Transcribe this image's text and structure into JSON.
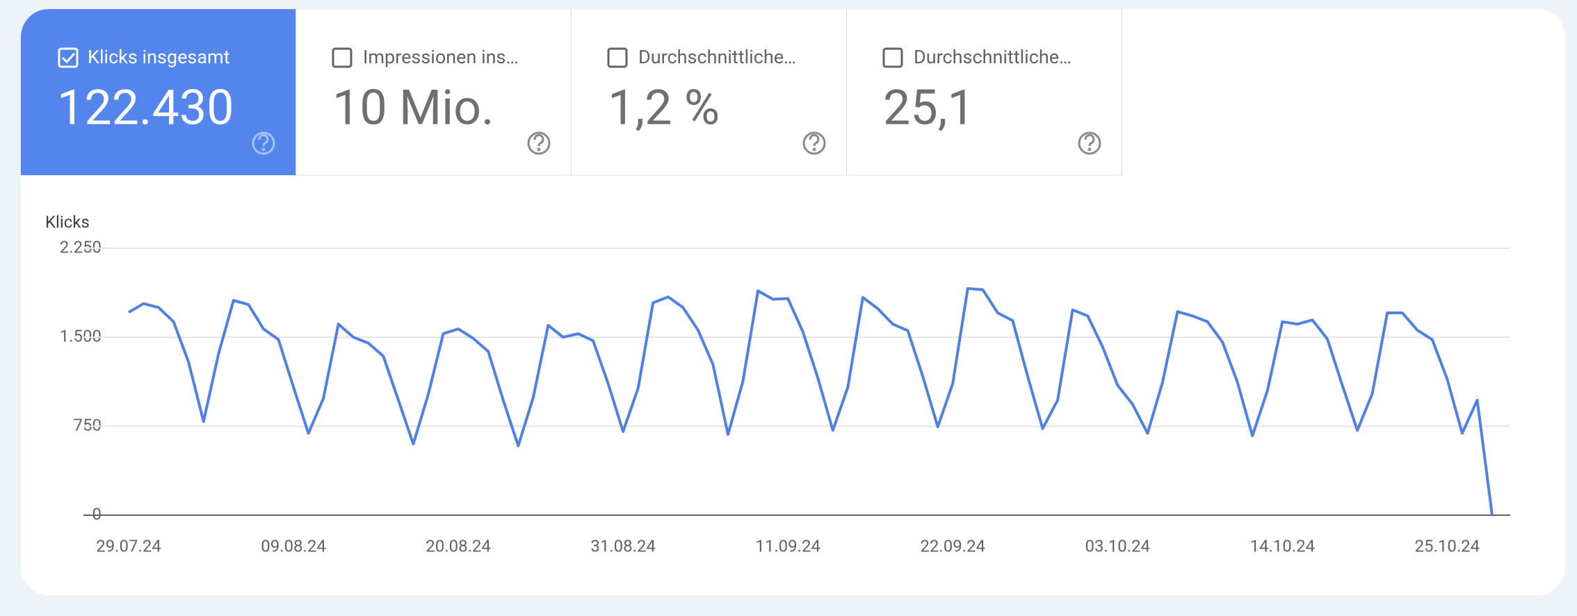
{
  "metrics": [
    {
      "label": "Klicks insgesamt",
      "value": "122.430"
    },
    {
      "label": "Impressionen ins…",
      "value": "10 Mio."
    },
    {
      "label": "Durchschnittliche…",
      "value": "1,2 %"
    },
    {
      "label": "Durchschnittliche…",
      "value": "25,1"
    }
  ],
  "chart_data": {
    "type": "line",
    "y_label": "Klicks",
    "color": "#4f81e3",
    "x": [
      "29.07.24",
      "30.07.24",
      "31.07.24",
      "01.08.24",
      "02.08.24",
      "03.08.24",
      "04.08.24",
      "05.08.24",
      "06.08.24",
      "07.08.24",
      "08.08.24",
      "09.08.24",
      "10.08.24",
      "11.08.24",
      "12.08.24",
      "13.08.24",
      "14.08.24",
      "15.08.24",
      "16.08.24",
      "17.08.24",
      "18.08.24",
      "19.08.24",
      "20.08.24",
      "21.08.24",
      "22.08.24",
      "23.08.24",
      "24.08.24",
      "25.08.24",
      "26.08.24",
      "27.08.24",
      "28.08.24",
      "29.08.24",
      "30.08.24",
      "31.08.24",
      "01.09.24",
      "02.09.24",
      "03.09.24",
      "04.09.24",
      "05.09.24",
      "06.09.24",
      "07.09.24",
      "08.09.24",
      "09.09.24",
      "10.09.24",
      "11.09.24",
      "12.09.24",
      "13.09.24",
      "14.09.24",
      "15.09.24",
      "16.09.24",
      "17.09.24",
      "18.09.24",
      "19.09.24",
      "20.09.24",
      "21.09.24",
      "22.09.24",
      "23.09.24",
      "24.09.24",
      "25.09.24",
      "26.09.24",
      "27.09.24",
      "28.09.24",
      "29.09.24",
      "30.09.24",
      "01.10.24",
      "02.10.24",
      "03.10.24",
      "04.10.24",
      "05.10.24",
      "06.10.24",
      "07.10.24",
      "08.10.24",
      "09.10.24",
      "10.10.24",
      "11.10.24",
      "12.10.24",
      "13.10.24",
      "14.10.24",
      "15.10.24",
      "16.10.24",
      "17.10.24",
      "18.10.24",
      "19.10.24",
      "20.10.24",
      "21.10.24",
      "22.10.24",
      "23.10.24",
      "24.10.24",
      "25.10.24",
      "26.10.24",
      "27.10.24",
      "28.10.24"
    ],
    "values": [
      1710,
      1783,
      1750,
      1630,
      1290,
      790,
      1360,
      1810,
      1775,
      1570,
      1480,
      1080,
      690,
      985,
      1610,
      1500,
      1450,
      1340,
      970,
      600,
      1020,
      1530,
      1570,
      1490,
      1380,
      970,
      585,
      990,
      1600,
      1500,
      1530,
      1470,
      1110,
      705,
      1070,
      1790,
      1840,
      1750,
      1560,
      1270,
      680,
      1130,
      1890,
      1820,
      1825,
      1545,
      1155,
      715,
      1080,
      1835,
      1740,
      1610,
      1555,
      1170,
      745,
      1110,
      1910,
      1900,
      1705,
      1640,
      1170,
      730,
      970,
      1730,
      1680,
      1420,
      1095,
      935,
      690,
      1120,
      1715,
      1680,
      1630,
      1460,
      1120,
      670,
      1050,
      1630,
      1610,
      1645,
      1485,
      1095,
      715,
      1025,
      1705,
      1705,
      1560,
      1480,
      1145,
      690,
      970,
      0
    ],
    "xticks": [
      "29.07.24",
      "09.08.24",
      "20.08.24",
      "31.08.24",
      "11.09.24",
      "22.09.24",
      "03.10.24",
      "14.10.24",
      "25.10.24"
    ],
    "ylim": [
      0,
      2250
    ],
    "yticks": [
      {
        "value": 2250,
        "label": "2.250"
      },
      {
        "value": 1500,
        "label": "1.500"
      },
      {
        "value": 750,
        "label": "750"
      },
      {
        "value": 0,
        "label": "0"
      }
    ],
    "grid": true
  }
}
